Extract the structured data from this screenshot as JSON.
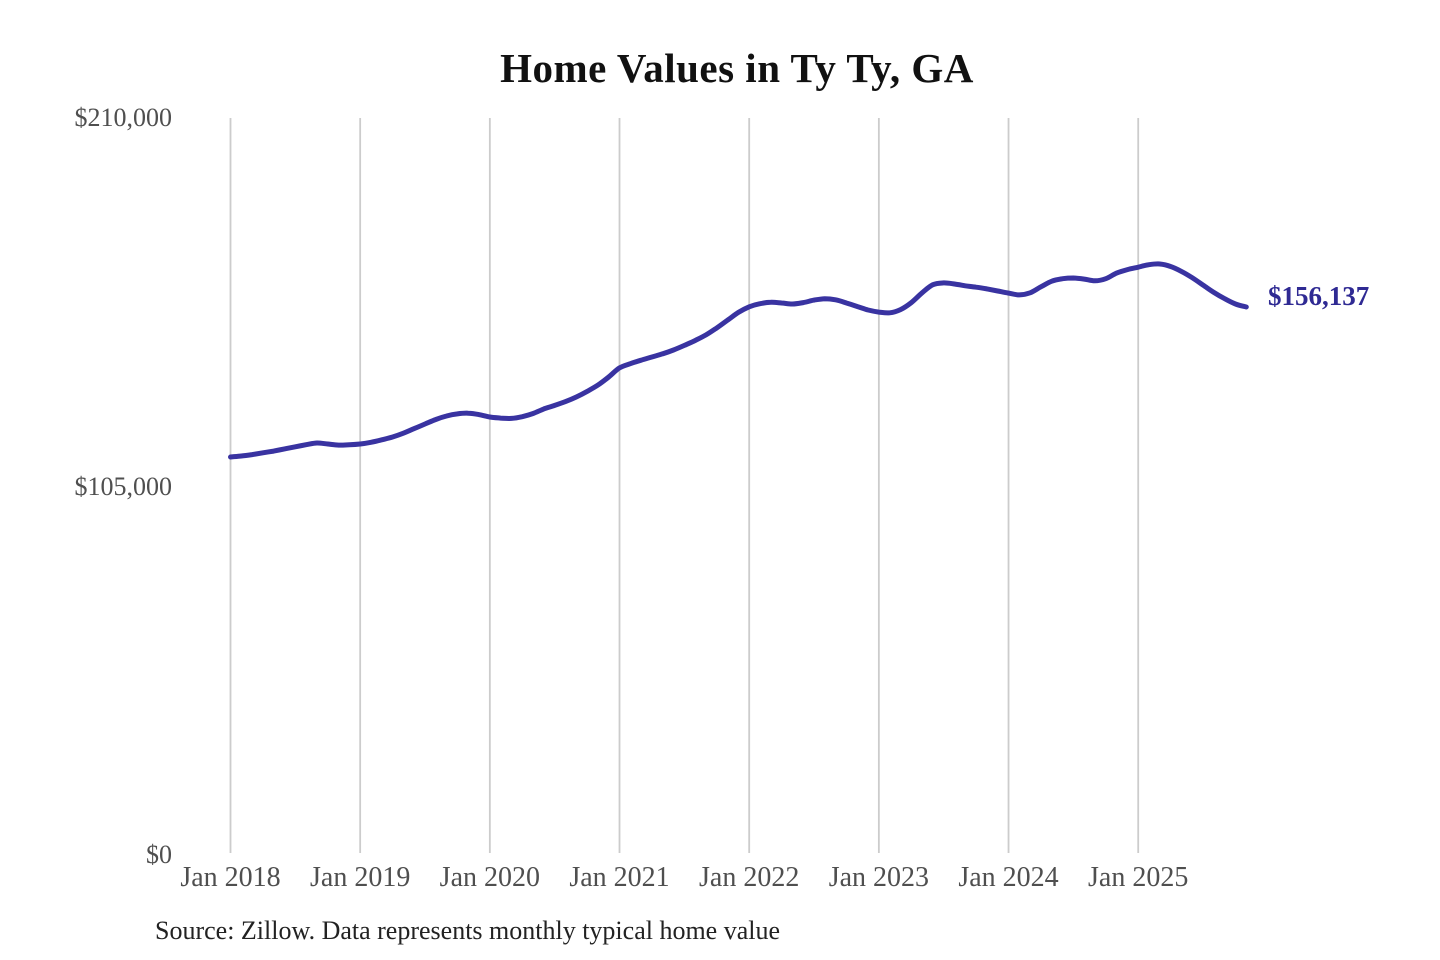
{
  "chart_data": {
    "type": "line",
    "title": "Home Values in Ty Ty, GA",
    "source": "Source: Zillow. Data represents monthly typical home value",
    "end_label": "$156,137",
    "end_value": 156137,
    "ylabel": "",
    "xlabel": "",
    "ylim": [
      0,
      210000
    ],
    "grid": "vertical-only",
    "legend": "none",
    "line_color": "#3933a1",
    "gridline_color": "#cccccc",
    "y_ticks": [
      {
        "label": "$0",
        "value": 0
      },
      {
        "label": "$105,000",
        "value": 105000
      },
      {
        "label": "$210,000",
        "value": 210000
      }
    ],
    "x_tick_labels": [
      "Jan 2018",
      "Jan 2019",
      "Jan 2020",
      "Jan 2021",
      "Jan 2022",
      "Jan 2023",
      "Jan 2024",
      "Jan 2025"
    ],
    "x_tick_months": [
      "2018-01",
      "2019-01",
      "2020-01",
      "2021-01",
      "2022-01",
      "2023-01",
      "2024-01",
      "2025-01"
    ],
    "series": [
      {
        "name": "Monthly typical home value",
        "x": [
          "2018-01",
          "2018-02",
          "2018-03",
          "2018-04",
          "2018-05",
          "2018-06",
          "2018-07",
          "2018-08",
          "2018-09",
          "2018-10",
          "2018-11",
          "2018-12",
          "2019-01",
          "2019-02",
          "2019-03",
          "2019-04",
          "2019-05",
          "2019-06",
          "2019-07",
          "2019-08",
          "2019-09",
          "2019-10",
          "2019-11",
          "2019-12",
          "2020-01",
          "2020-02",
          "2020-03",
          "2020-04",
          "2020-05",
          "2020-06",
          "2020-07",
          "2020-08",
          "2020-09",
          "2020-10",
          "2020-11",
          "2020-12",
          "2021-01",
          "2021-02",
          "2021-03",
          "2021-04",
          "2021-05",
          "2021-06",
          "2021-07",
          "2021-08",
          "2021-09",
          "2021-10",
          "2021-11",
          "2021-12",
          "2022-01",
          "2022-02",
          "2022-03",
          "2022-04",
          "2022-05",
          "2022-06",
          "2022-07",
          "2022-08",
          "2022-09",
          "2022-10",
          "2022-11",
          "2022-12",
          "2023-01",
          "2023-02",
          "2023-03",
          "2023-04",
          "2023-05",
          "2023-06",
          "2023-07",
          "2023-08",
          "2023-09",
          "2023-10",
          "2023-11",
          "2023-12",
          "2024-01",
          "2024-02",
          "2024-03",
          "2024-04",
          "2024-05",
          "2024-06",
          "2024-07",
          "2024-08",
          "2024-09",
          "2024-10",
          "2024-11",
          "2024-12",
          "2025-01",
          "2025-02",
          "2025-03",
          "2025-04",
          "2025-05",
          "2025-06",
          "2025-07",
          "2025-08",
          "2025-09",
          "2025-10",
          "2025-11"
        ],
        "values": [
          113400,
          113700,
          114100,
          114600,
          115100,
          115700,
          116300,
          116900,
          117400,
          117100,
          116800,
          116900,
          117100,
          117600,
          118300,
          119100,
          120200,
          121500,
          122800,
          124100,
          125100,
          125700,
          125900,
          125500,
          124800,
          124500,
          124400,
          124900,
          125800,
          127100,
          128100,
          129200,
          130500,
          132100,
          133900,
          136200,
          138800,
          140000,
          141000,
          141900,
          142800,
          143900,
          145200,
          146600,
          148200,
          150200,
          152400,
          154600,
          156200,
          157100,
          157500,
          157300,
          157000,
          157400,
          158100,
          158500,
          158200,
          157300,
          156300,
          155300,
          154700,
          154500,
          155400,
          157400,
          160200,
          162500,
          163000,
          162700,
          162200,
          161800,
          161300,
          160700,
          160100,
          159600,
          160200,
          161900,
          163500,
          164200,
          164400,
          164100,
          163600,
          164200,
          165800,
          166800,
          167500,
          168200,
          168400,
          167700,
          166300,
          164500,
          162400,
          160300,
          158500,
          157000,
          156137
        ]
      }
    ]
  }
}
